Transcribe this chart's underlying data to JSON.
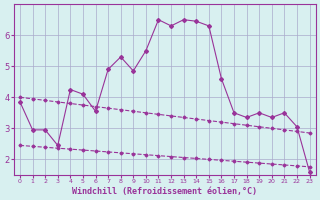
{
  "x": [
    0,
    1,
    2,
    3,
    4,
    5,
    6,
    7,
    8,
    9,
    10,
    11,
    12,
    13,
    14,
    15,
    16,
    17,
    18,
    19,
    20,
    21,
    22,
    23
  ],
  "line_main": [
    3.85,
    2.95,
    2.95,
    2.45,
    4.25,
    4.1,
    3.55,
    4.9,
    5.3,
    4.85,
    5.5,
    6.5,
    6.3,
    6.5,
    6.45,
    6.3,
    4.6,
    3.5,
    3.35,
    3.5,
    3.35,
    3.5,
    3.05,
    1.6
  ],
  "trend1": [
    4.0,
    3.95,
    3.9,
    3.85,
    3.8,
    3.75,
    3.7,
    3.65,
    3.6,
    3.55,
    3.5,
    3.45,
    3.4,
    3.35,
    3.3,
    3.25,
    3.2,
    3.15,
    3.1,
    3.05,
    3.0,
    2.95,
    2.9,
    2.85
  ],
  "trend2": [
    2.45,
    2.42,
    2.39,
    2.36,
    2.33,
    2.3,
    2.27,
    2.24,
    2.21,
    2.18,
    2.15,
    2.12,
    2.09,
    2.06,
    2.03,
    2.0,
    1.97,
    1.94,
    1.91,
    1.88,
    1.85,
    1.82,
    1.79,
    1.76
  ],
  "color_main": "#993399",
  "bg_color": "#d8f0f0",
  "grid_color": "#aaaacc",
  "xlabel": "Windchill (Refroidissement éolien,°C)",
  "ylim": [
    1.5,
    7.0
  ],
  "xlim": [
    -0.5,
    23.5
  ],
  "yticks": [
    2,
    3,
    4,
    5,
    6
  ],
  "xtick_labels": [
    "0",
    "1",
    "2",
    "3",
    "4",
    "5",
    "6",
    "7",
    "8",
    "9",
    "10",
    "11",
    "12",
    "13",
    "14",
    "15",
    "16",
    "17",
    "18",
    "19",
    "20",
    "21",
    "22",
    "23"
  ]
}
